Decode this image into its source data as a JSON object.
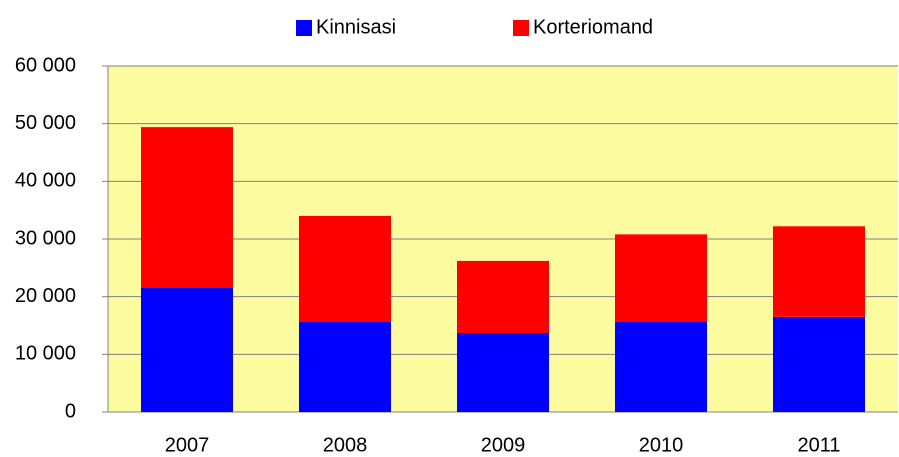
{
  "chart_data": {
    "type": "bar",
    "stacked": true,
    "categories": [
      "2007",
      "2008",
      "2009",
      "2010",
      "2011"
    ],
    "series": [
      {
        "name": "Kinnisasi",
        "color": "#0000ff",
        "values": [
          21500,
          15600,
          13700,
          15600,
          16500
        ]
      },
      {
        "name": "Korteriomand",
        "color": "#ff0000",
        "values": [
          27900,
          18400,
          12500,
          15200,
          15700
        ]
      }
    ],
    "ylim": [
      0,
      60000
    ],
    "yticks": [
      0,
      {
        "value": 10000,
        "label": "10 000"
      },
      {
        "value": 20000,
        "label": "20 000"
      },
      {
        "value": 30000,
        "label": "30 000"
      },
      {
        "value": 40000,
        "label": "40 000"
      },
      {
        "value": 50000,
        "label": "50 000"
      },
      {
        "value": 60000,
        "label": "60 000"
      }
    ],
    "grid": true,
    "legend": "top",
    "plot_background": "#fdfb9f"
  }
}
